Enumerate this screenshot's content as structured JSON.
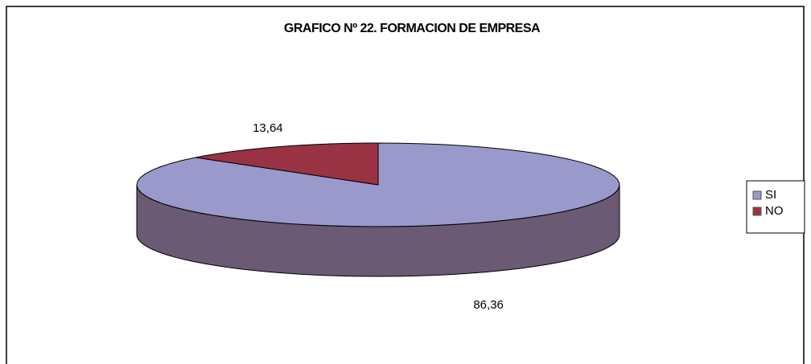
{
  "chart_data": {
    "type": "pie",
    "title": "GRAFICO Nº 22. FORMACION DE EMPRESA",
    "categories": [
      "SI",
      "NO"
    ],
    "values": [
      86.36,
      13.64
    ],
    "value_labels": [
      "86,36",
      "13,64"
    ],
    "colors": [
      "#9999cc",
      "#993344"
    ],
    "side_colors": [
      "#6b5a73",
      "#6a2a35"
    ],
    "legend": "right"
  }
}
